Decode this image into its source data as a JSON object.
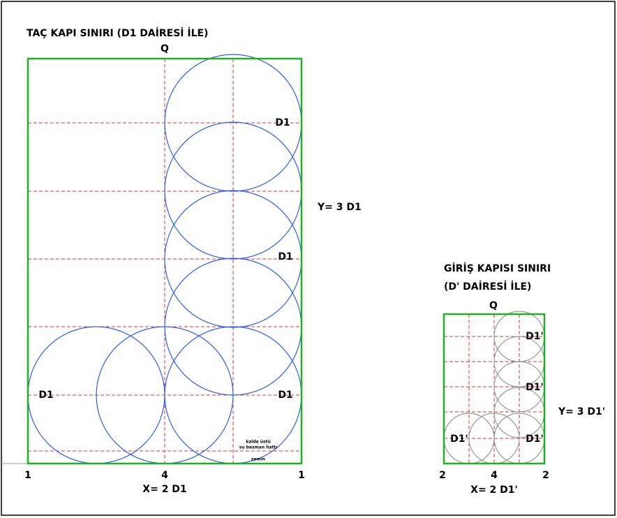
{
  "left": {
    "title": "TAÇ KAPI SINIRI (D1 DAİRESİ İLE)",
    "q": "Q",
    "circle_labels": [
      "D1",
      "D1",
      "D1",
      "D1"
    ],
    "y_label": "Y= 3 D1",
    "bottom_labels": [
      "1",
      "4",
      "1"
    ],
    "x_label": "X= 2 D1",
    "notes": [
      "kalde üstü",
      "su basman hattı",
      "zemin"
    ]
  },
  "right": {
    "title_lines": [
      "GİRİŞ KAPISI SINIRI",
      "(D' DAİRESİ İLE)"
    ],
    "q": "Q",
    "circle_labels": [
      "D1'",
      "D1'",
      "D1'",
      "D1'"
    ],
    "y_label": "Y= 3 D1'",
    "bottom_labels": [
      "2",
      "4",
      "2"
    ],
    "x_label": "X= 2 D1'"
  }
}
